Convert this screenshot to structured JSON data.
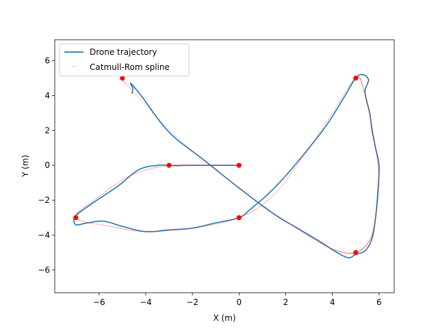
{
  "chart_data": {
    "type": "line",
    "title": "",
    "xlabel": "X (m)",
    "ylabel": "Y (m)",
    "xlim": [
      -7.9,
      6.65
    ],
    "ylim": [
      -7.3,
      7.2
    ],
    "xticks": [
      -6,
      -4,
      -2,
      0,
      2,
      4,
      6
    ],
    "yticks": [
      -6,
      -4,
      -2,
      0,
      2,
      4,
      6
    ],
    "grid": false,
    "legend_position": "top-left",
    "colors": {
      "trajectory": "#1f77b4",
      "spline": "#ff0000",
      "waypoints": "#ff0000"
    },
    "series": [
      {
        "name": "Drone trajectory",
        "style": "line",
        "points": [
          [
            0.0,
            0.0
          ],
          [
            -1.0,
            0.0
          ],
          [
            -2.0,
            0.0
          ],
          [
            -2.7,
            -0.02
          ],
          [
            -3.0,
            0.0
          ],
          [
            -3.5,
            0.0
          ],
          [
            -4.3,
            -0.25
          ],
          [
            -5.2,
            -1.2
          ],
          [
            -6.2,
            -2.1
          ],
          [
            -7.0,
            -2.9
          ],
          [
            -7.0,
            -3.4
          ],
          [
            -6.5,
            -3.3
          ],
          [
            -5.8,
            -3.2
          ],
          [
            -5.0,
            -3.5
          ],
          [
            -4.0,
            -3.8
          ],
          [
            -3.0,
            -3.7
          ],
          [
            -2.0,
            -3.6
          ],
          [
            -1.0,
            -3.3
          ],
          [
            0.0,
            -3.0
          ],
          [
            0.5,
            -2.5
          ],
          [
            1.2,
            -1.7
          ],
          [
            2.0,
            -0.6
          ],
          [
            3.0,
            1.0
          ],
          [
            3.8,
            2.4
          ],
          [
            4.5,
            3.9
          ],
          [
            5.0,
            5.0
          ],
          [
            5.3,
            5.2
          ],
          [
            5.55,
            4.9
          ],
          [
            5.4,
            4.2
          ],
          [
            5.6,
            3.0
          ],
          [
            5.7,
            2.0
          ],
          [
            5.85,
            1.0
          ],
          [
            6.0,
            0.0
          ],
          [
            5.95,
            -1.5
          ],
          [
            5.85,
            -3.0
          ],
          [
            5.7,
            -4.2
          ],
          [
            5.4,
            -4.9
          ],
          [
            5.0,
            -5.1
          ],
          [
            4.7,
            -5.3
          ],
          [
            4.2,
            -5.0
          ],
          [
            3.5,
            -4.4
          ],
          [
            2.5,
            -3.6
          ],
          [
            1.5,
            -2.8
          ],
          [
            0.0,
            -1.3
          ],
          [
            -1.5,
            0.3
          ],
          [
            -3.0,
            1.9
          ],
          [
            -4.2,
            4.0
          ],
          [
            -4.65,
            4.7
          ],
          [
            -4.55,
            4.4
          ],
          [
            -4.6,
            4.1
          ]
        ]
      },
      {
        "name": "Catmull-Rom spline",
        "style": "dotted",
        "points": [
          [
            0.0,
            0.0
          ],
          [
            -1.5,
            0.0
          ],
          [
            -3.0,
            0.0
          ],
          [
            -4.6,
            -0.55
          ],
          [
            -6.1,
            -1.9
          ],
          [
            -7.0,
            -3.0
          ],
          [
            -5.5,
            -3.5
          ],
          [
            -4.0,
            -3.8
          ],
          [
            -2.0,
            -3.6
          ],
          [
            0.0,
            -3.0
          ],
          [
            1.4,
            -1.8
          ],
          [
            2.7,
            0.4
          ],
          [
            3.9,
            2.8
          ],
          [
            5.0,
            5.0
          ],
          [
            5.35,
            4.3
          ],
          [
            5.6,
            2.9
          ],
          [
            5.85,
            1.0
          ],
          [
            6.0,
            -0.9
          ],
          [
            5.85,
            -3.0
          ],
          [
            5.6,
            -4.3
          ],
          [
            5.0,
            -5.0
          ],
          [
            4.2,
            -4.9
          ],
          [
            3.3,
            -4.3
          ],
          [
            2.0,
            -3.2
          ],
          [
            0.0,
            -1.3
          ],
          [
            -2.5,
            1.4
          ],
          [
            -4.8,
            4.6
          ],
          [
            -5.0,
            5.0
          ]
        ]
      },
      {
        "name": "",
        "style": "markers",
        "points": [
          [
            0,
            0
          ],
          [
            -3,
            0
          ],
          [
            -7,
            -3
          ],
          [
            0,
            -3
          ],
          [
            5,
            5
          ],
          [
            5,
            -5
          ],
          [
            -5,
            5
          ]
        ]
      }
    ],
    "legend": [
      "Drone trajectory",
      "Catmull-Rom spline"
    ]
  }
}
